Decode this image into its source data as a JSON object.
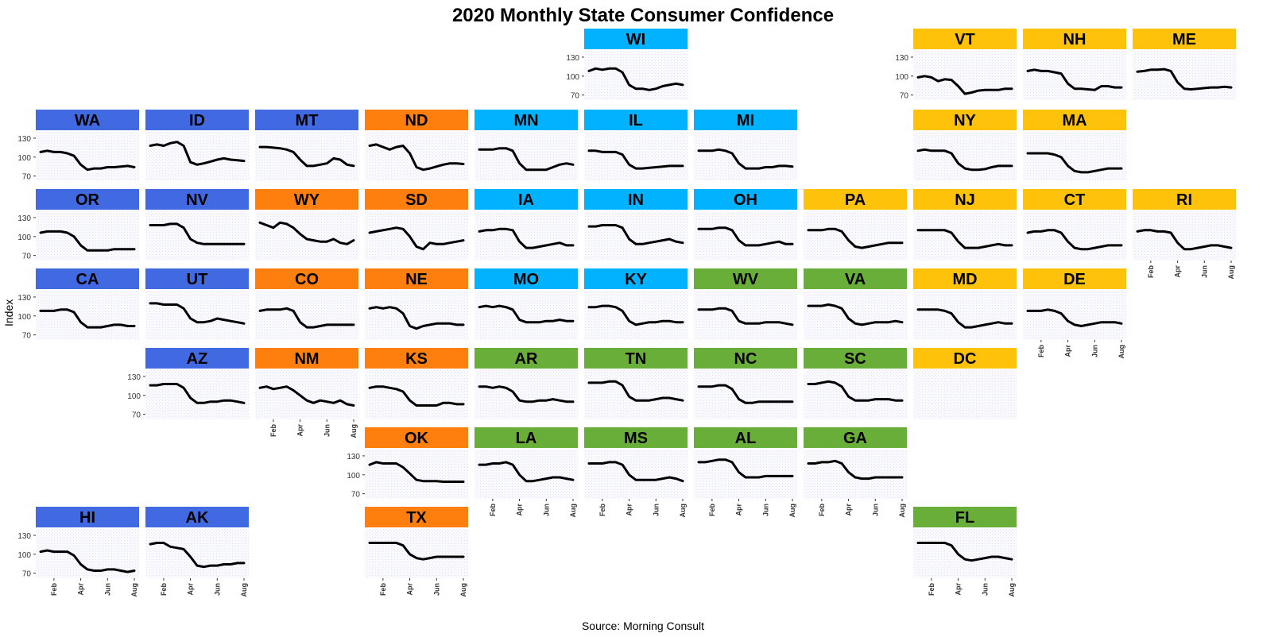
{
  "title": "2020 Monthly State Consumer Confidence",
  "ylabel": "Index",
  "source": "Source: Morning Consult",
  "chart_data": {
    "type": "line",
    "title": "2020 Monthly State Consumer Confidence",
    "ylabel": "Index",
    "xlabel": "",
    "x_ticks": [
      "Feb",
      "Apr",
      "Jun",
      "Aug"
    ],
    "y_ticks": [
      70,
      100,
      130
    ],
    "ylim": [
      62,
      140
    ],
    "grid": true,
    "region_colors": {
      "west": "#4169E1",
      "plains": "#FF7F0E",
      "midwest": "#00B2FF",
      "south": "#6AAE3A",
      "northeast": "#FFC20A"
    },
    "line_color": "#000000",
    "panels": [
      {
        "state": "WI",
        "region": "midwest",
        "values": [
          108,
          112,
          110,
          112,
          112,
          106,
          86,
          80,
          80,
          78,
          80,
          84,
          86,
          88,
          86
        ]
      },
      {
        "state": "VT",
        "region": "northeast",
        "values": [
          98,
          100,
          98,
          92,
          95,
          94,
          84,
          72,
          74,
          77,
          78,
          78,
          78,
          80,
          80
        ]
      },
      {
        "state": "NH",
        "region": "northeast",
        "values": [
          108,
          110,
          108,
          108,
          106,
          104,
          88,
          80,
          80,
          79,
          78,
          84,
          84,
          82,
          82
        ]
      },
      {
        "state": "ME",
        "region": "northeast",
        "values": [
          107,
          108,
          110,
          110,
          111,
          108,
          90,
          80,
          79,
          80,
          81,
          82,
          82,
          83,
          82
        ]
      },
      {
        "state": "WA",
        "region": "west",
        "values": [
          108,
          110,
          108,
          108,
          106,
          102,
          88,
          80,
          82,
          82,
          84,
          84,
          85,
          86,
          84
        ]
      },
      {
        "state": "ID",
        "region": "west",
        "values": [
          118,
          120,
          118,
          122,
          124,
          118,
          92,
          88,
          90,
          93,
          96,
          98,
          96,
          95,
          94
        ]
      },
      {
        "state": "MT",
        "region": "west",
        "values": [
          116,
          116,
          115,
          114,
          112,
          108,
          96,
          86,
          86,
          88,
          90,
          98,
          96,
          88,
          86
        ]
      },
      {
        "state": "ND",
        "region": "plains",
        "values": [
          118,
          120,
          116,
          112,
          116,
          118,
          106,
          84,
          80,
          82,
          85,
          88,
          90,
          90,
          89
        ]
      },
      {
        "state": "MN",
        "region": "midwest",
        "values": [
          112,
          112,
          112,
          114,
          114,
          110,
          90,
          80,
          80,
          80,
          80,
          84,
          88,
          90,
          88
        ]
      },
      {
        "state": "IL",
        "region": "midwest",
        "values": [
          110,
          110,
          108,
          108,
          108,
          104,
          88,
          82,
          82,
          83,
          84,
          85,
          86,
          86,
          86
        ]
      },
      {
        "state": "MI",
        "region": "midwest",
        "values": [
          110,
          110,
          110,
          112,
          110,
          106,
          90,
          82,
          82,
          82,
          84,
          84,
          86,
          86,
          85
        ]
      },
      {
        "state": "NY",
        "region": "northeast",
        "values": [
          110,
          112,
          110,
          110,
          110,
          106,
          90,
          82,
          80,
          80,
          81,
          84,
          86,
          86,
          86
        ]
      },
      {
        "state": "MA",
        "region": "northeast",
        "values": [
          106,
          106,
          106,
          106,
          104,
          100,
          86,
          78,
          76,
          76,
          78,
          80,
          82,
          82,
          82
        ]
      },
      {
        "state": "OR",
        "region": "west",
        "values": [
          106,
          108,
          108,
          108,
          106,
          100,
          86,
          78,
          78,
          78,
          78,
          80,
          80,
          80,
          80
        ]
      },
      {
        "state": "NV",
        "region": "west",
        "values": [
          118,
          118,
          118,
          120,
          120,
          114,
          96,
          90,
          88,
          88,
          88,
          88,
          88,
          88,
          88
        ]
      },
      {
        "state": "WY",
        "region": "plains",
        "values": [
          122,
          118,
          114,
          122,
          120,
          114,
          104,
          96,
          94,
          92,
          92,
          96,
          90,
          88,
          94
        ]
      },
      {
        "state": "SD",
        "region": "plains",
        "values": [
          106,
          108,
          110,
          112,
          114,
          112,
          100,
          84,
          80,
          90,
          88,
          88,
          90,
          92,
          94
        ]
      },
      {
        "state": "IA",
        "region": "midwest",
        "values": [
          108,
          110,
          110,
          112,
          112,
          110,
          92,
          82,
          82,
          84,
          86,
          88,
          90,
          86,
          86
        ]
      },
      {
        "state": "IN",
        "region": "midwest",
        "values": [
          116,
          116,
          118,
          118,
          118,
          114,
          96,
          88,
          88,
          90,
          92,
          94,
          96,
          92,
          90
        ]
      },
      {
        "state": "OH",
        "region": "midwest",
        "values": [
          112,
          112,
          112,
          114,
          114,
          110,
          94,
          86,
          86,
          86,
          88,
          90,
          92,
          88,
          88
        ]
      },
      {
        "state": "PA",
        "region": "northeast",
        "values": [
          110,
          110,
          110,
          112,
          112,
          108,
          94,
          84,
          82,
          84,
          86,
          88,
          90,
          90,
          90
        ]
      },
      {
        "state": "NJ",
        "region": "northeast",
        "values": [
          110,
          110,
          110,
          110,
          110,
          106,
          92,
          82,
          82,
          82,
          84,
          86,
          88,
          86,
          86
        ]
      },
      {
        "state": "CT",
        "region": "northeast",
        "values": [
          106,
          108,
          108,
          110,
          110,
          106,
          92,
          82,
          80,
          80,
          82,
          84,
          86,
          86,
          86
        ]
      },
      {
        "state": "RI",
        "region": "northeast",
        "values": [
          108,
          110,
          110,
          108,
          108,
          106,
          90,
          80,
          80,
          82,
          84,
          86,
          86,
          84,
          82
        ]
      },
      {
        "state": "CA",
        "region": "west",
        "values": [
          108,
          108,
          108,
          110,
          110,
          106,
          90,
          82,
          82,
          82,
          84,
          86,
          86,
          84,
          84
        ]
      },
      {
        "state": "UT",
        "region": "west",
        "values": [
          120,
          120,
          118,
          118,
          118,
          112,
          96,
          90,
          90,
          92,
          96,
          94,
          92,
          90,
          88
        ]
      },
      {
        "state": "CO",
        "region": "plains",
        "values": [
          108,
          110,
          110,
          110,
          112,
          108,
          90,
          82,
          82,
          84,
          86,
          86,
          86,
          86,
          86
        ]
      },
      {
        "state": "NE",
        "region": "plains",
        "values": [
          112,
          114,
          112,
          114,
          112,
          104,
          84,
          80,
          84,
          86,
          88,
          88,
          88,
          86,
          86
        ]
      },
      {
        "state": "MO",
        "region": "midwest",
        "values": [
          114,
          116,
          114,
          116,
          114,
          110,
          94,
          90,
          90,
          90,
          92,
          92,
          94,
          92,
          92
        ]
      },
      {
        "state": "KY",
        "region": "midwest",
        "values": [
          114,
          114,
          116,
          116,
          114,
          108,
          92,
          86,
          88,
          90,
          90,
          92,
          92,
          90,
          90
        ]
      },
      {
        "state": "WV",
        "region": "south",
        "values": [
          110,
          110,
          110,
          112,
          112,
          108,
          92,
          88,
          88,
          88,
          90,
          90,
          90,
          88,
          86
        ]
      },
      {
        "state": "VA",
        "region": "south",
        "values": [
          116,
          116,
          116,
          118,
          116,
          112,
          96,
          88,
          86,
          88,
          90,
          90,
          90,
          92,
          90
        ]
      },
      {
        "state": "MD",
        "region": "northeast",
        "values": [
          110,
          110,
          110,
          110,
          108,
          104,
          90,
          82,
          82,
          84,
          86,
          88,
          90,
          88,
          88
        ]
      },
      {
        "state": "DE",
        "region": "northeast",
        "values": [
          108,
          108,
          108,
          110,
          108,
          104,
          92,
          86,
          84,
          86,
          88,
          90,
          90,
          90,
          88
        ]
      },
      {
        "state": "AZ",
        "region": "west",
        "values": [
          116,
          116,
          118,
          118,
          118,
          112,
          96,
          88,
          88,
          90,
          90,
          92,
          92,
          90,
          88
        ]
      },
      {
        "state": "NM",
        "region": "plains",
        "values": [
          112,
          114,
          110,
          112,
          114,
          108,
          100,
          92,
          88,
          92,
          90,
          88,
          92,
          86,
          84
        ]
      },
      {
        "state": "KS",
        "region": "plains",
        "values": [
          112,
          114,
          114,
          112,
          110,
          106,
          92,
          84,
          84,
          84,
          84,
          88,
          88,
          86,
          86
        ]
      },
      {
        "state": "AR",
        "region": "south",
        "values": [
          114,
          114,
          112,
          114,
          112,
          106,
          92,
          90,
          90,
          92,
          92,
          94,
          92,
          90,
          90
        ]
      },
      {
        "state": "TN",
        "region": "south",
        "values": [
          120,
          120,
          120,
          122,
          122,
          116,
          98,
          92,
          92,
          92,
          94,
          96,
          96,
          94,
          92
        ]
      },
      {
        "state": "NC",
        "region": "south",
        "values": [
          114,
          114,
          114,
          116,
          116,
          110,
          94,
          88,
          88,
          90,
          90,
          90,
          90,
          90,
          90
        ]
      },
      {
        "state": "SC",
        "region": "south",
        "values": [
          118,
          118,
          120,
          122,
          120,
          114,
          98,
          92,
          92,
          92,
          94,
          94,
          94,
          92,
          92
        ]
      },
      {
        "state": "DC",
        "region": "northeast",
        "values": []
      },
      {
        "state": "OK",
        "region": "plains",
        "values": [
          116,
          120,
          118,
          118,
          118,
          112,
          102,
          92,
          90,
          90,
          90,
          89,
          89,
          89,
          89
        ]
      },
      {
        "state": "LA",
        "region": "south",
        "values": [
          116,
          116,
          118,
          118,
          120,
          116,
          100,
          90,
          90,
          92,
          94,
          96,
          96,
          94,
          92
        ]
      },
      {
        "state": "MS",
        "region": "south",
        "values": [
          118,
          118,
          118,
          120,
          120,
          116,
          100,
          92,
          92,
          92,
          92,
          94,
          96,
          94,
          90
        ]
      },
      {
        "state": "AL",
        "region": "south",
        "values": [
          120,
          120,
          122,
          124,
          124,
          120,
          104,
          96,
          96,
          96,
          98,
          98,
          98,
          98,
          98
        ]
      },
      {
        "state": "GA",
        "region": "south",
        "values": [
          118,
          118,
          120,
          120,
          122,
          118,
          104,
          96,
          94,
          94,
          96,
          96,
          96,
          96,
          96
        ]
      },
      {
        "state": "HI",
        "region": "west",
        "values": [
          104,
          106,
          104,
          104,
          104,
          98,
          84,
          76,
          74,
          74,
          76,
          76,
          74,
          72,
          74
        ]
      },
      {
        "state": "AK",
        "region": "west",
        "values": [
          116,
          118,
          118,
          112,
          110,
          108,
          96,
          82,
          80,
          82,
          82,
          84,
          84,
          86,
          86
        ]
      },
      {
        "state": "TX",
        "region": "plains",
        "values": [
          118,
          118,
          118,
          118,
          118,
          114,
          100,
          94,
          92,
          94,
          96,
          96,
          96,
          96,
          96
        ]
      },
      {
        "state": "FL",
        "region": "south",
        "values": [
          118,
          118,
          118,
          118,
          118,
          114,
          100,
          92,
          90,
          92,
          94,
          96,
          96,
          94,
          92
        ]
      }
    ]
  }
}
